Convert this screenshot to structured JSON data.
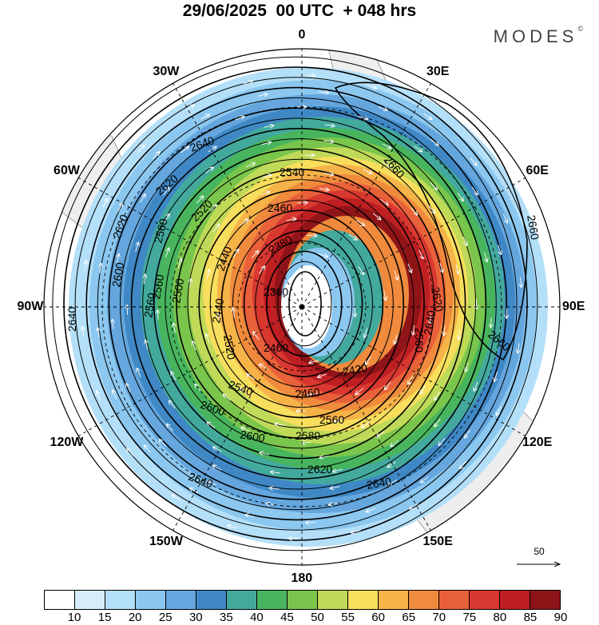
{
  "header": {
    "title": "29/06/2025  00 UTC  + 048 hrs",
    "brand": "MODES",
    "brand_mark": "©"
  },
  "map": {
    "projection": "south-polar-stereographic",
    "longitude_labels": [
      "0",
      "30E",
      "60E",
      "90E",
      "120E",
      "150E",
      "180",
      "150W",
      "120W",
      "90W",
      "60W",
      "30W"
    ],
    "contour_labels": [
      "2640",
      "2620",
      "2620",
      "2600",
      "2640",
      "2560",
      "2520",
      "2540",
      "2460",
      "2440",
      "2380",
      "2360",
      "2560",
      "2500",
      "2560",
      "2440",
      "2400",
      "2420",
      "2460",
      "2540",
      "2600",
      "2580",
      "2560",
      "2620",
      "2600",
      "2640",
      "2640",
      "2660",
      "2660",
      "2660",
      "2640",
      "2620",
      "2560",
      "2520"
    ],
    "wind_reference": {
      "value": "50"
    },
    "colors": {
      "land": "#eeeeee",
      "contour": "#000000",
      "vector": "#ffffff"
    }
  },
  "colorbar": {
    "labels": [
      "10",
      "15",
      "20",
      "25",
      "30",
      "35",
      "40",
      "45",
      "50",
      "55",
      "60",
      "65",
      "70",
      "75",
      "80",
      "85",
      "90"
    ],
    "colors": [
      "#ffffff",
      "#d6eefc",
      "#b4dff8",
      "#8bc7ef",
      "#64a6dd",
      "#3f88c5",
      "#43a99d",
      "#48b55e",
      "#7ac54c",
      "#bfd958",
      "#f7de5c",
      "#f5b348",
      "#f08a3d",
      "#e9613a",
      "#d93830",
      "#bd1f23",
      "#8f1418"
    ]
  }
}
